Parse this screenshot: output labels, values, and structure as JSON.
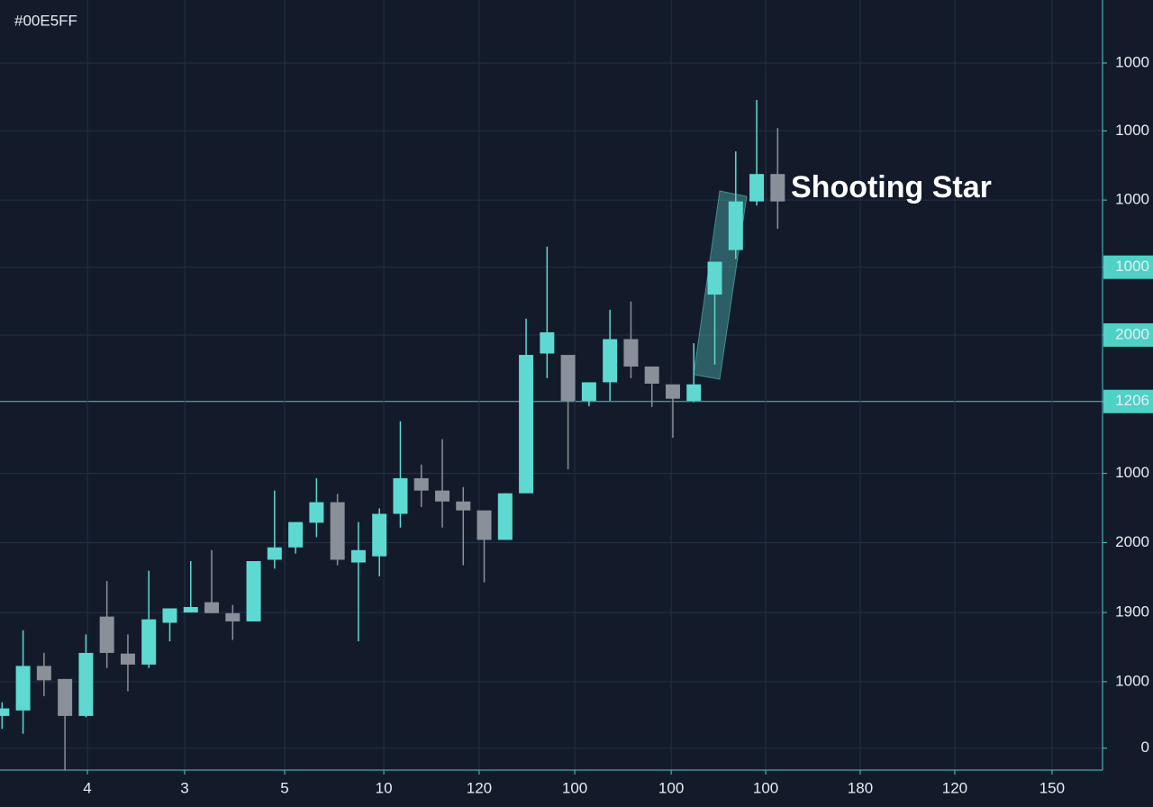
{
  "chart_data": {
    "type": "candlestick",
    "title": "#00E5FF",
    "annotation": "Shooting Star",
    "up_color": "#5ed9d1",
    "down_color": "#8a9099",
    "grid": true,
    "x": [
      0,
      1,
      2,
      3,
      4,
      5,
      6,
      7,
      8,
      9,
      10,
      11,
      12,
      13,
      14,
      15,
      16,
      17,
      18,
      19,
      20,
      21,
      22,
      23,
      24,
      25,
      26,
      27,
      28,
      29,
      30,
      31,
      32,
      33,
      34,
      35,
      36,
      37
    ],
    "series": [
      {
        "open": [
          0.47,
          0.55,
          1.2,
          1.01,
          0.47,
          1.92,
          1.38,
          1.22,
          1.83,
          1.98,
          2.13,
          1.97,
          1.85,
          2.75,
          2.93,
          3.29,
          3.59,
          2.71,
          2.8,
          3.42,
          3.94,
          3.76,
          3.6,
          3.47,
          3.04,
          3.72,
          5.76,
          5.74,
          5.07,
          5.34,
          5.97,
          5.57,
          5.31,
          5.07,
          6.62,
          7.27,
          7.98,
          8.38
        ],
        "high": [
          0.67,
          1.72,
          1.39,
          1.01,
          1.66,
          2.44,
          1.66,
          2.59,
          2.04,
          2.73,
          2.89,
          2.09,
          2.73,
          3.76,
          3.3,
          3.94,
          3.71,
          3.3,
          3.5,
          4.77,
          4.14,
          4.51,
          3.81,
          3.47,
          3.72,
          6.27,
          7.32,
          5.74,
          5.34,
          6.4,
          6.52,
          5.57,
          5.31,
          5.91,
          7.1,
          8.71,
          9.46,
          9.05
        ],
        "low": [
          0.28,
          0.21,
          0.76,
          -0.32,
          0.45,
          1.17,
          0.83,
          1.17,
          1.56,
          1.98,
          1.97,
          1.58,
          1.85,
          2.62,
          2.84,
          3.08,
          2.67,
          1.56,
          2.51,
          3.22,
          3.52,
          3.22,
          2.67,
          2.42,
          3.04,
          3.72,
          5.4,
          4.07,
          4.99,
          5.07,
          5.4,
          4.98,
          4.53,
          5.05,
          5.6,
          7.14,
          7.92,
          7.58
        ],
        "close": [
          0.58,
          1.2,
          0.99,
          0.47,
          1.39,
          1.39,
          1.22,
          1.88,
          2.04,
          2.06,
          1.97,
          1.85,
          2.73,
          2.93,
          3.3,
          3.59,
          2.75,
          2.89,
          3.42,
          3.94,
          3.76,
          3.6,
          3.47,
          3.04,
          3.72,
          5.74,
          6.07,
          5.07,
          5.34,
          5.97,
          5.57,
          5.32,
          5.1,
          5.31,
          7.1,
          7.98,
          8.38,
          7.98
        ]
      }
    ],
    "xlim": [
      -0.1,
      52.5
    ],
    "xticks": [
      {
        "value": 4.07,
        "label": "4"
      },
      {
        "value": 8.71,
        "label": "3"
      },
      {
        "value": 13.48,
        "label": "5"
      },
      {
        "value": 18.21,
        "label": "10"
      },
      {
        "value": 22.76,
        "label": "120"
      },
      {
        "value": 27.32,
        "label": "100"
      },
      {
        "value": 31.92,
        "label": "100"
      },
      {
        "value": 36.43,
        "label": "100"
      },
      {
        "value": 40.94,
        "label": "180"
      },
      {
        "value": 45.45,
        "label": "120"
      },
      {
        "value": 50.09,
        "label": "150"
      }
    ],
    "ylim": [
      -0.32,
      10.92
    ],
    "yticks": [
      0,
      {
        "value": 0.97,
        "label": "1000"
      },
      {
        "value": 1.98,
        "label": "1900"
      },
      {
        "value": 3.0,
        "label": "2000"
      },
      {
        "value": 4.01,
        "label": "1000"
      },
      {
        "value": 5.06,
        "label": "1206",
        "highlight": true,
        "price_line": true
      },
      {
        "value": 6.03,
        "label": "2000",
        "highlight": true
      },
      {
        "value": 7.02,
        "label": "1000",
        "highlight": true
      },
      {
        "value": 8.0,
        "label": "1000"
      },
      {
        "value": 9.01,
        "label": "1000"
      },
      {
        "value": 10.0,
        "label": "1000"
      }
    ]
  }
}
